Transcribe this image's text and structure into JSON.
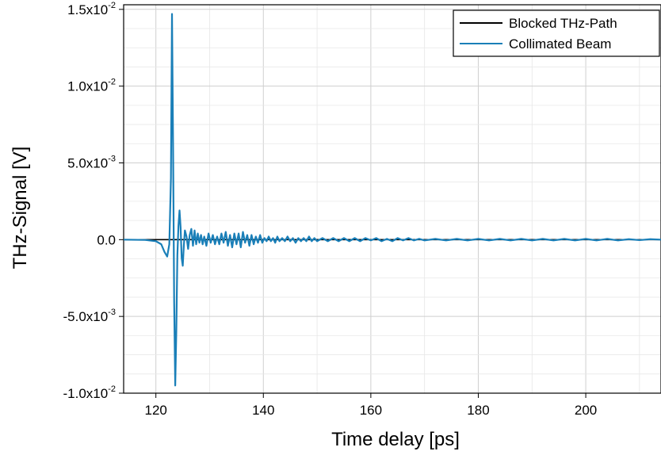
{
  "chart_data": {
    "type": "line",
    "title": "",
    "xlabel": "Time delay [ps]",
    "ylabel": "THz-Signal [V]",
    "xlim": [
      114,
      214
    ],
    "ylim": [
      -0.01,
      0.0153
    ],
    "grid": true,
    "legend_position": "top-right",
    "x_ticks": [
      {
        "value": 120,
        "label": "120"
      },
      {
        "value": 140,
        "label": "140"
      },
      {
        "value": 160,
        "label": "160"
      },
      {
        "value": 180,
        "label": "180"
      },
      {
        "value": 200,
        "label": "200"
      }
    ],
    "y_ticks": [
      {
        "value": 0.015,
        "mantissa": "1.5x10",
        "exponent": "-2"
      },
      {
        "value": 0.01,
        "mantissa": "1.0x10",
        "exponent": "-2"
      },
      {
        "value": 0.005,
        "mantissa": "5.0x10",
        "exponent": "-3"
      },
      {
        "value": 0.0,
        "mantissa": "0.0",
        "exponent": ""
      },
      {
        "value": -0.005,
        "mantissa": "-5.0x10",
        "exponent": "-3"
      },
      {
        "value": -0.01,
        "mantissa": "-1.0x10",
        "exponent": "-2"
      }
    ],
    "series": [
      {
        "name": "Blocked THz-Path",
        "color": "#000000",
        "x": [
          114,
          214
        ],
        "y": [
          0.0,
          0.0
        ]
      },
      {
        "name": "Collimated Beam",
        "color": "#1a7fb8",
        "x": [
          114,
          118,
          120,
          121,
          121.6,
          122.1,
          122.5,
          122.8,
          123.0,
          123.2,
          123.4,
          123.6,
          123.8,
          124.0,
          124.2,
          124.4,
          124.6,
          124.8,
          125.0,
          125.2,
          125.4,
          125.7,
          126.0,
          126.3,
          126.6,
          126.9,
          127.2,
          127.5,
          127.8,
          128.1,
          128.4,
          128.7,
          129.0,
          129.4,
          129.8,
          130.2,
          130.6,
          131.0,
          131.4,
          131.8,
          132.2,
          132.6,
          133.0,
          133.4,
          133.8,
          134.2,
          134.6,
          135.0,
          135.4,
          135.8,
          136.2,
          136.6,
          137.0,
          137.4,
          137.8,
          138.2,
          138.6,
          139.0,
          139.4,
          139.8,
          140.2,
          140.6,
          141.0,
          141.4,
          141.8,
          142.2,
          142.6,
          143.0,
          143.5,
          144.0,
          144.5,
          145.0,
          145.5,
          146.0,
          146.5,
          147.0,
          147.5,
          148.0,
          148.5,
          149.0,
          149.5,
          150.0,
          151.0,
          152.0,
          153.0,
          154.0,
          155.0,
          156.0,
          157.0,
          158.0,
          159.0,
          160.0,
          161.0,
          162.0,
          163.0,
          164.0,
          165.0,
          166.0,
          167.0,
          168.0,
          169.0,
          170.0,
          172.0,
          174.0,
          176.0,
          178.0,
          180.0,
          182.0,
          184.0,
          186.0,
          188.0,
          190.0,
          192.0,
          194.0,
          196.0,
          198.0,
          200.0,
          202.0,
          204.0,
          206.0,
          208.0,
          210.0,
          212.0,
          214.0
        ],
        "y": [
          0.0,
          -2e-05,
          -0.0001,
          -0.0003,
          -0.0008,
          -0.0011,
          -0.0003,
          0.004,
          0.0147,
          0.006,
          -0.004,
          -0.0095,
          -0.006,
          -0.001,
          0.0009,
          0.0019,
          0.0008,
          -0.0012,
          -0.0017,
          -0.0004,
          0.0006,
          0.0002,
          -0.0006,
          0.0003,
          0.0007,
          -0.0004,
          0.0006,
          -0.0003,
          0.0004,
          -0.0002,
          0.0003,
          -0.0003,
          0.0002,
          -0.0004,
          0.0004,
          -0.0002,
          0.0003,
          -0.0003,
          0.0002,
          -0.0003,
          0.0004,
          -0.0002,
          0.0005,
          -0.0004,
          0.0003,
          -0.0005,
          0.0004,
          -0.0003,
          0.0004,
          -0.0005,
          0.0005,
          -0.0002,
          0.0003,
          -0.0004,
          0.0003,
          -0.0003,
          0.0002,
          -0.0002,
          0.0003,
          -0.0002,
          0.0001,
          -0.0001,
          0.0002,
          -0.0001,
          0.0001,
          -0.0002,
          0.0002,
          -0.0001,
          0.0001,
          -0.0001,
          0.0002,
          -0.0001,
          0.0001,
          -0.0002,
          0.0001,
          -0.0001,
          0.0001,
          -0.0001,
          0.0002,
          -0.0001,
          0.0001,
          -0.0001,
          0.0001,
          -0.0001,
          0.0001,
          -0.0001,
          0.0001,
          -0.0001,
          0.0001,
          -0.0001,
          0.0001,
          -5e-05,
          0.0001,
          -0.0001,
          5e-05,
          -0.0001,
          0.0001,
          -5e-05,
          0.0001,
          -5e-05,
          5e-05,
          -5e-05,
          5e-05,
          -5e-05,
          5e-05,
          -5e-05,
          5e-05,
          -5e-05,
          5e-05,
          -5e-05,
          5e-05,
          -5e-05,
          5e-05,
          -5e-05,
          5e-05,
          -5e-05,
          5e-05,
          -5e-05,
          5e-05,
          -5e-05,
          3e-05,
          -3e-05,
          3e-05,
          0.0
        ]
      }
    ]
  }
}
